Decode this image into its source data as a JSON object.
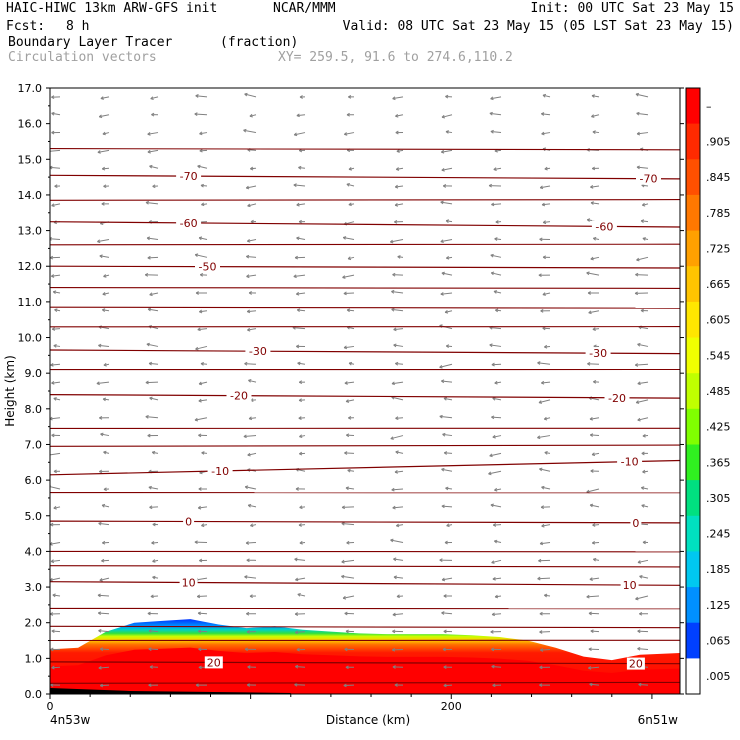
{
  "header": {
    "model": "HAIC-HIWC 13km ARW-GFS init",
    "org": "NCAR/MMM",
    "init": "Init: 00 UTC Sat 23 May 15",
    "fcst_label": "Fcst:",
    "fcst_value": "8 h",
    "valid": "Valid: 08 UTC Sat 23 May 15 (05 LST Sat 23 May 15)",
    "field": "Boundary Layer Tracer",
    "field_units": "(fraction)",
    "overlay": "Circulation vectors",
    "xy": "XY= 259.5, 91.6 to 274.6,110.2"
  },
  "chart_data": {
    "type": "heatmap",
    "title": "Boundary Layer Tracer",
    "xlabel": "Distance (km)",
    "ylabel": "Height (km)",
    "xlim": [
      0,
      314
    ],
    "ylim": [
      0,
      17
    ],
    "x_ticks": [
      {
        "v": 0,
        "label": "0"
      },
      {
        "v": 200,
        "label": "200"
      }
    ],
    "y_ticks": [
      0,
      1,
      2,
      3,
      4,
      5,
      6,
      7,
      8,
      9,
      10,
      11,
      12,
      13,
      14,
      15,
      16,
      17
    ],
    "y_tick_labels": [
      "0.0",
      "1.0",
      "2.0",
      "3.0",
      "4.0",
      "5.0",
      "6.0",
      "7.0",
      "8.0",
      "9.0",
      "10.0",
      "11.0",
      "12.0",
      "13.0",
      "14.0",
      "15.0",
      "16.0",
      "17.0"
    ],
    "x_end_labels": {
      "left": "4n53w",
      "right": "6n51w"
    },
    "colorbar_labels": [
      "–",
      ".905",
      ".845",
      ".785",
      ".725",
      ".665",
      ".605",
      ".545",
      ".485",
      ".425",
      ".365",
      ".305",
      ".245",
      ".185",
      ".125",
      ".065",
      ".005"
    ],
    "colorbar_colors": [
      "#ff0000",
      "#ff2a00",
      "#ff5000",
      "#ff7800",
      "#ffa000",
      "#ffc400",
      "#ffe600",
      "#f0ff00",
      "#c0ff00",
      "#80ff00",
      "#30f020",
      "#00e080",
      "#00e0c0",
      "#00c8f0",
      "#0090ff",
      "#0040ff",
      "#ffffff"
    ],
    "bl_top_profile": {
      "x": [
        0,
        14,
        28,
        42,
        56,
        70,
        84,
        98,
        112,
        126,
        140,
        154,
        168,
        182,
        196,
        210,
        224,
        238,
        252,
        266,
        280,
        294,
        314
      ],
      "top": [
        1.25,
        1.3,
        1.75,
        2.0,
        2.05,
        2.1,
        1.95,
        1.85,
        1.9,
        1.8,
        1.75,
        1.7,
        1.68,
        1.68,
        1.68,
        1.65,
        1.6,
        1.5,
        1.3,
        1.05,
        0.95,
        1.1,
        1.15
      ]
    },
    "isotherms": [
      {
        "value": -70,
        "y0": 14.55,
        "y1": 14.45,
        "label": "-70",
        "labels": [
          22,
          95
        ]
      },
      {
        "value": -60,
        "y0": 13.25,
        "y1": 13.1,
        "label": "-60",
        "labels": [
          22,
          88
        ]
      },
      {
        "value": -50,
        "y0": 12.0,
        "y1": 11.95,
        "label": "-50",
        "labels": [
          25
        ]
      },
      {
        "value": -30,
        "y0": 9.65,
        "y1": 9.55,
        "label": "-30",
        "labels": [
          33,
          87
        ]
      },
      {
        "value": -20,
        "y0": 8.4,
        "y1": 8.3,
        "label": "-20",
        "labels": [
          30,
          90
        ]
      },
      {
        "value": -10,
        "y0": 6.15,
        "y1": 6.55,
        "label": "-10",
        "labels": [
          27,
          92
        ]
      },
      {
        "value": 0,
        "y0": 4.85,
        "y1": 4.8,
        "label": "0",
        "labels": [
          22,
          93
        ]
      },
      {
        "value": 10,
        "y0": 3.15,
        "y1": 3.05,
        "label": "10",
        "labels": [
          22,
          92
        ]
      },
      {
        "value": 20,
        "y0": 0.9,
        "y1": 0.85,
        "label": "20",
        "labels": [
          26,
          93
        ]
      }
    ],
    "plain_isotherm_levels": [
      15.3,
      13.85,
      12.6,
      11.4,
      10.85,
      10.3,
      9.1,
      7.45,
      6.95,
      5.65,
      4.0,
      3.6,
      2.4,
      1.9,
      1.5,
      0.3
    ]
  },
  "colors": {
    "isotherm": "#800000",
    "vector": "#808080"
  }
}
